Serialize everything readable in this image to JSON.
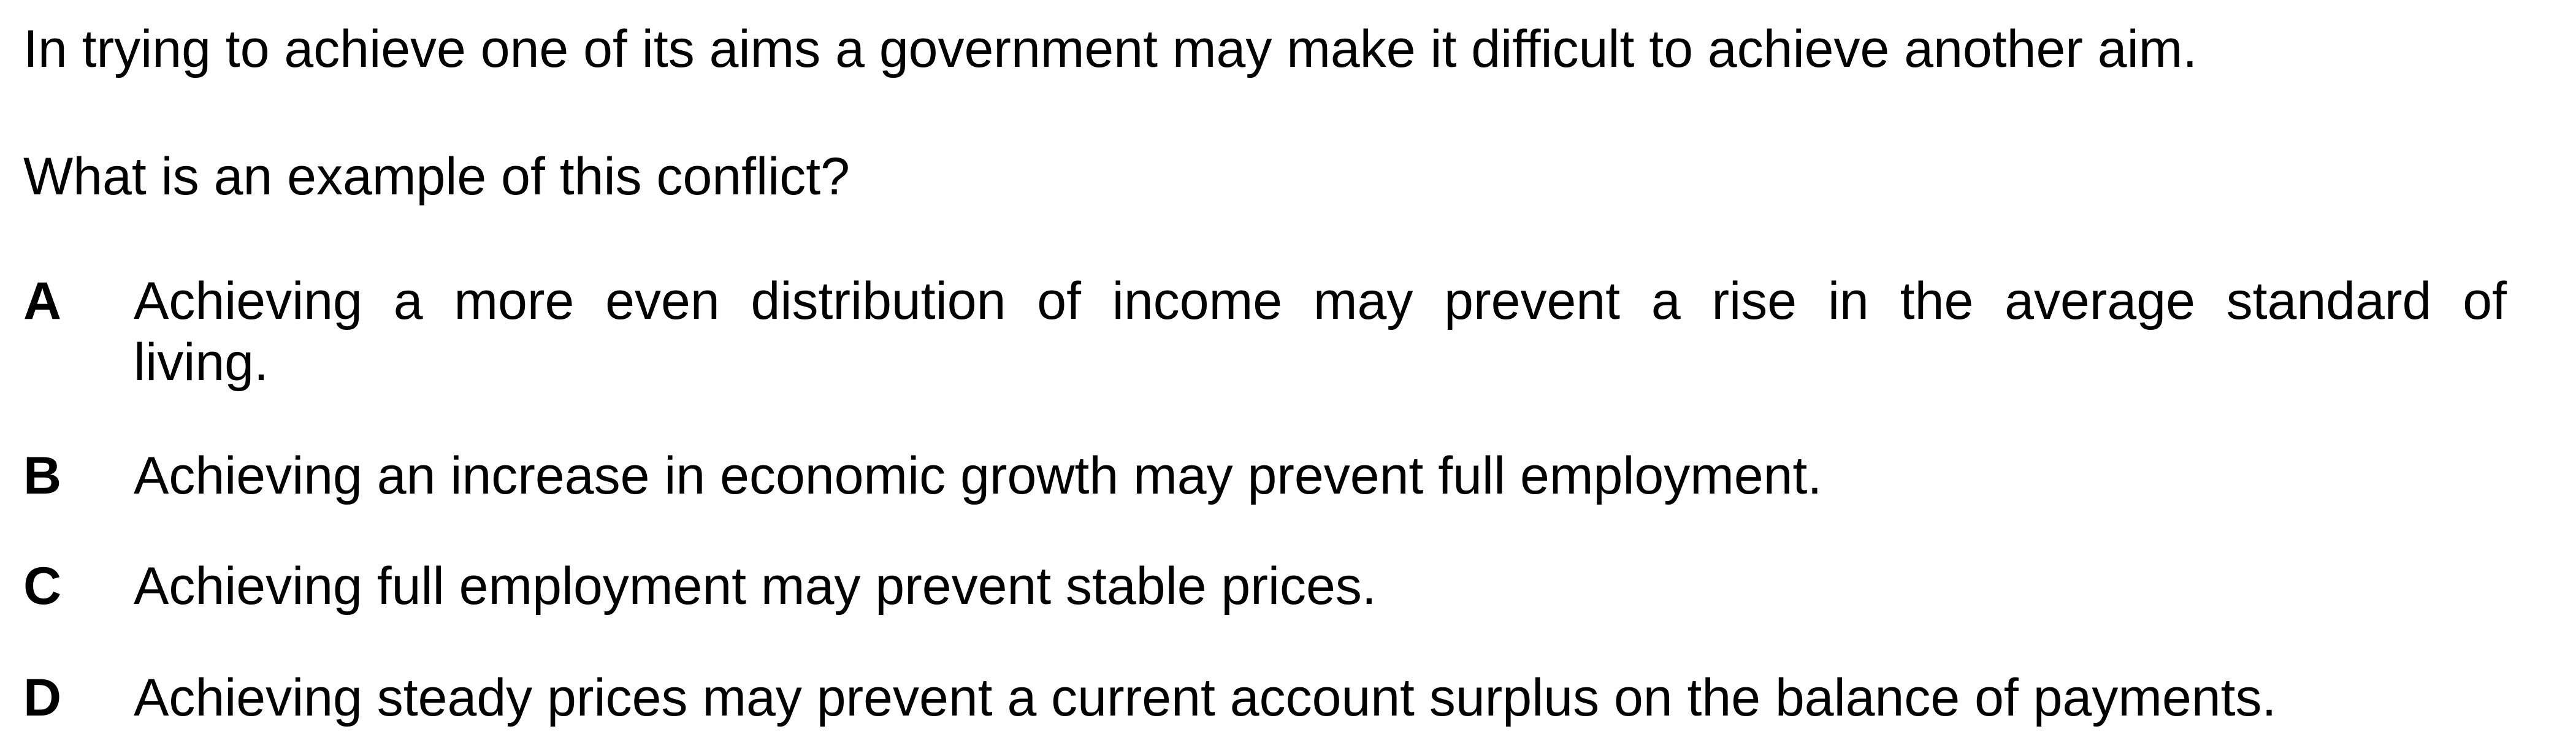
{
  "question": {
    "statement": "In trying to achieve one of its aims a government may make it difficult to achieve another aim.",
    "prompt": "What is an example of this conflict?"
  },
  "options": [
    {
      "letter": "A",
      "line1": "Achieving a more even distribution of income may prevent a rise in the average standard of",
      "line2": "living."
    },
    {
      "letter": "B",
      "text": "Achieving an increase in economic growth may prevent full employment."
    },
    {
      "letter": "C",
      "text": "Achieving full employment may prevent stable prices."
    },
    {
      "letter": "D",
      "text": "Achieving steady prices may prevent a current account surplus on the balance of payments."
    }
  ]
}
